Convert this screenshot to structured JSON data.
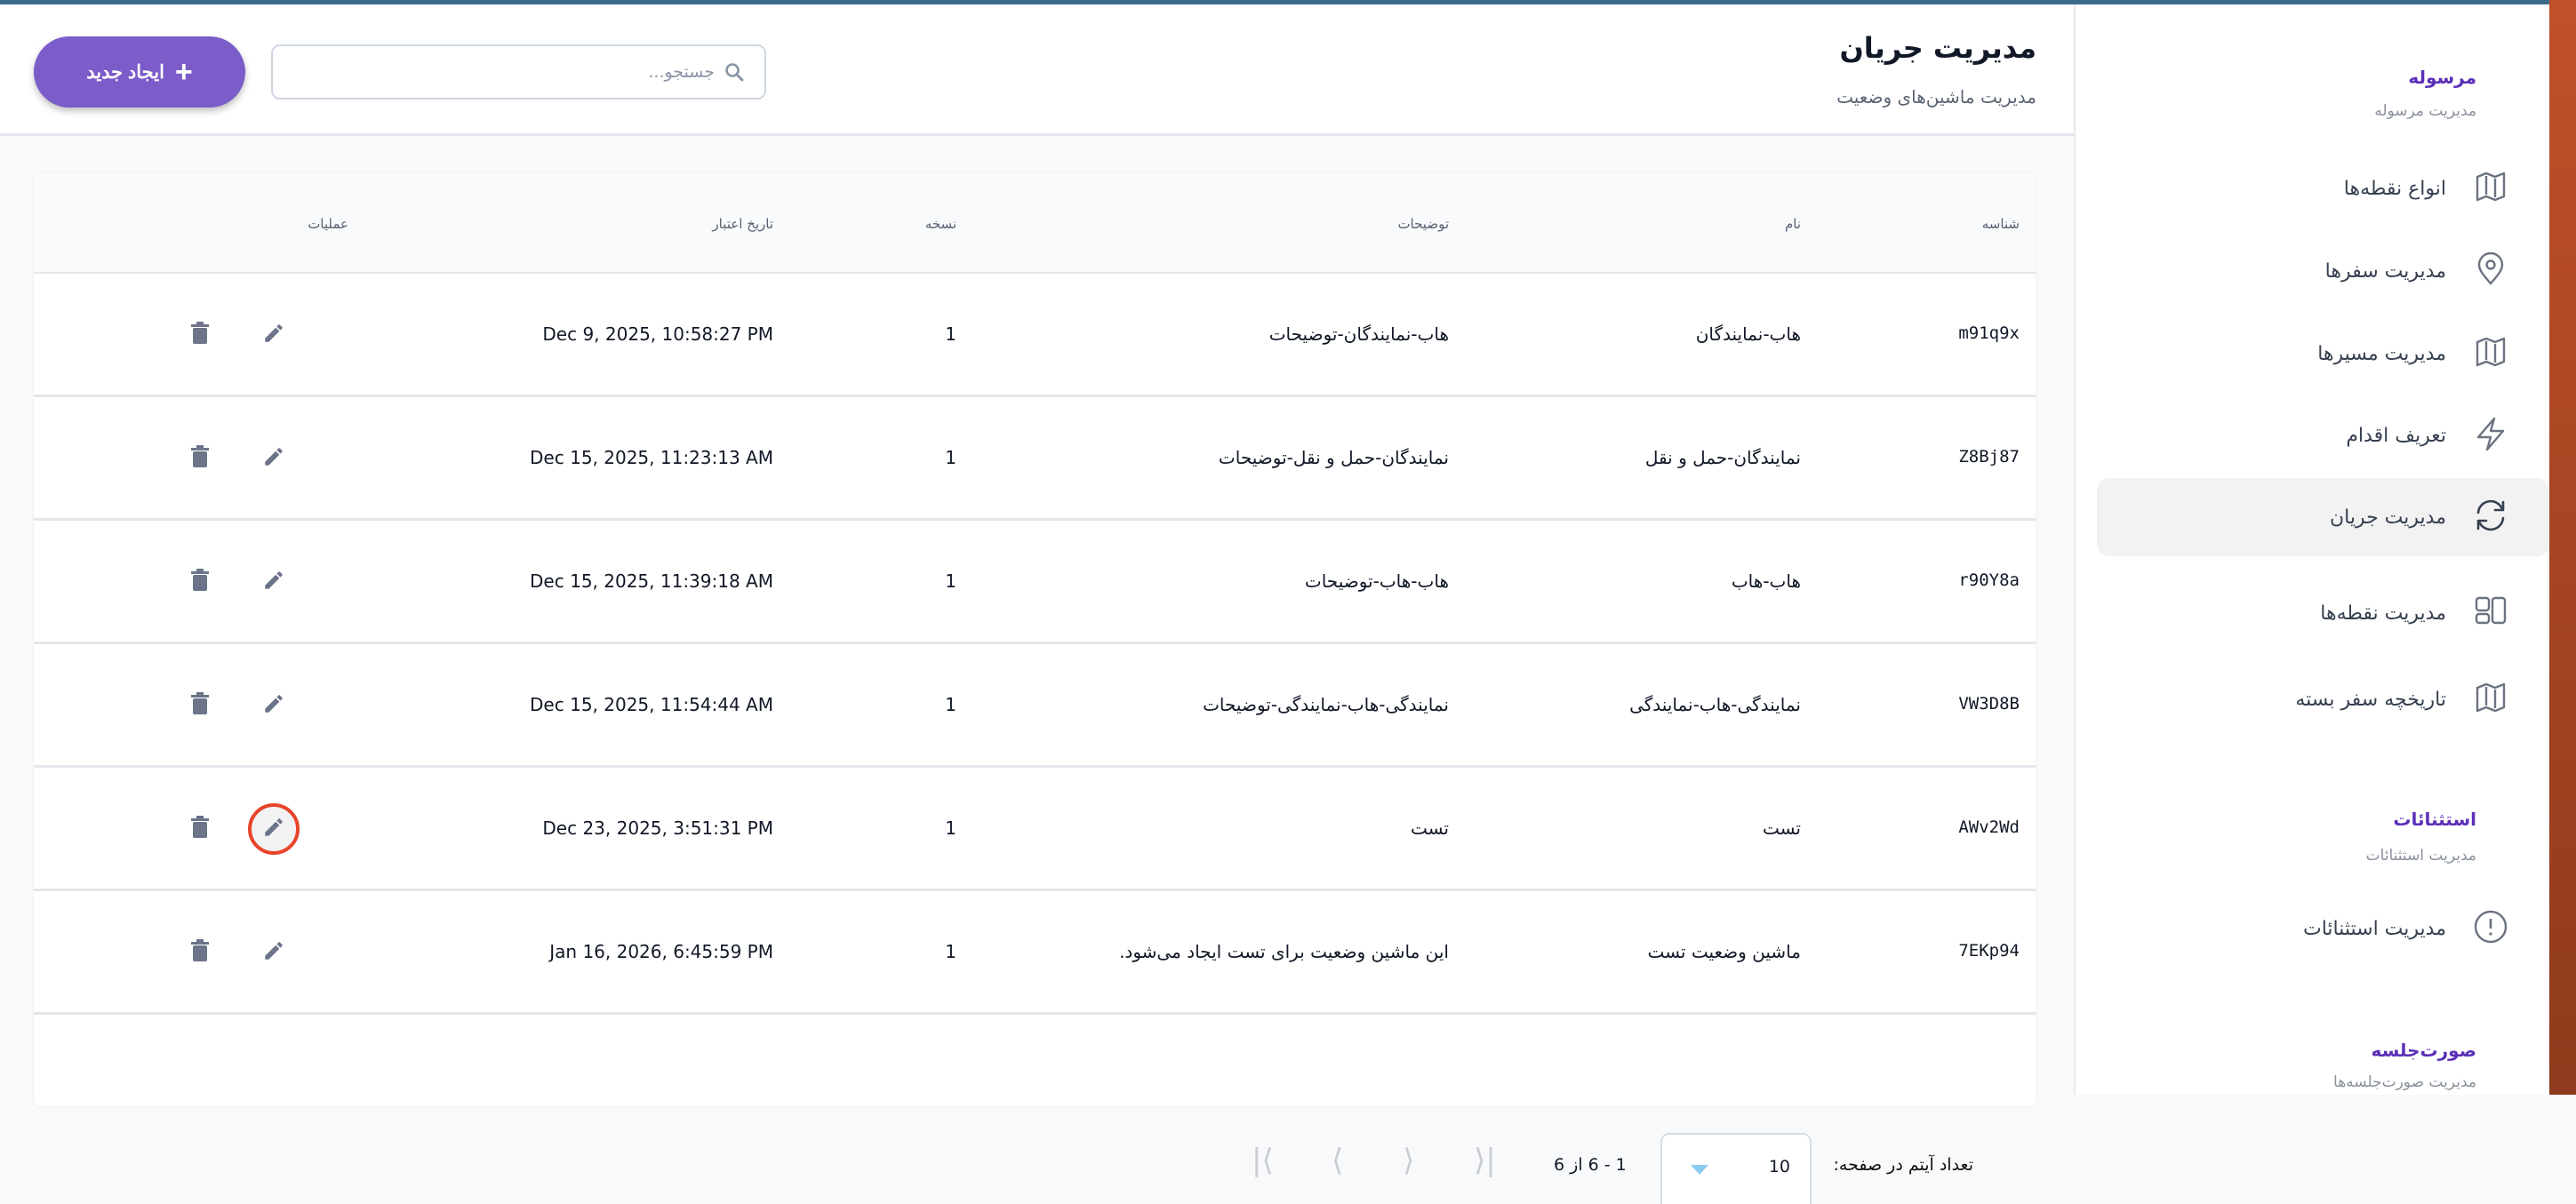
{
  "header": {
    "title": "مدیریت جریان",
    "subtitle": "مدیریت ماشین‌های وضعیت",
    "create_label": "ایجاد جدید",
    "search_placeholder": "جستجو...",
    "search_value": ""
  },
  "table": {
    "columns": [
      "شناسه",
      "نام",
      "توضیحات",
      "نسخه",
      "تاریخ اعتبار",
      "عملیات"
    ],
    "rows": [
      {
        "id": "m91q9x",
        "name": "هاب-نمایندگان",
        "description": "هاب-نمایندگان-توضیحات",
        "version": "1",
        "date": "Dec 9, 2025, 10:58:27 PM"
      },
      {
        "id": "Z8Bj87",
        "name": "نمایندگان-حمل و نقل",
        "description": "نمایندگان-حمل و نقل-توضیحات",
        "version": "1",
        "date": "Dec 15, 2025, 11:23:13 AM"
      },
      {
        "id": "r90Y8a",
        "name": "هاب-هاب",
        "description": "هاب-هاب-توضیحات",
        "version": "1",
        "date": "Dec 15, 2025, 11:39:18 AM"
      },
      {
        "id": "VW3D8B",
        "name": "نمایندگی-هاب-نمایندگی",
        "description": "نمایندگی-هاب-نمایندگی-توضیحات",
        "version": "1",
        "date": "Dec 15, 2025, 11:54:44 AM"
      },
      {
        "id": "AWv2Wd",
        "name": "تست",
        "description": "تست",
        "version": "1",
        "date": "Dec 23, 2025, 3:51:31 PM"
      },
      {
        "id": "7EKp94",
        "name": "ماشین وضعیت تست",
        "description": "این ماشین وضعیت برای تست ایجاد می‌شود.",
        "version": "1",
        "date": "Jan 16, 2026, 6:45:59 PM"
      }
    ],
    "highlighted_row": 4
  },
  "pagination": {
    "per_page_label": "تعداد آیتم در صفحه:",
    "per_page": "10",
    "range": "1 - 6 از 6"
  },
  "sidebar": {
    "groups": [
      {
        "title": "مرسوله",
        "subtitle": "مدیریت مرسوله",
        "items": [
          {
            "label": "انواع نقطه‌ها",
            "icon": "map-icon"
          },
          {
            "label": "مدیریت سفرها",
            "icon": "map-pin-icon"
          },
          {
            "label": "مدیریت مسیرها",
            "icon": "map-icon"
          },
          {
            "label": "تعریف اقدام",
            "icon": "lightning-icon"
          },
          {
            "label": "مدیریت جریان",
            "icon": "refresh-icon",
            "active": true
          },
          {
            "label": "مدیریت نقطه‌ها",
            "icon": "layout-icon"
          },
          {
            "label": "تاریخچه سفر بسته",
            "icon": "map-icon"
          }
        ]
      },
      {
        "title": "استثنائات",
        "subtitle": "مدیریت استثنائات",
        "items": [
          {
            "label": "مدیریت استثنائات",
            "icon": "alert-circle-icon"
          }
        ]
      },
      {
        "title": "صورت‌جلسه",
        "subtitle": "مدیریت صورت‌جلسه‌ها",
        "items": []
      }
    ]
  },
  "colors": {
    "accent": "#7b5cc8",
    "group_title": "#5b2fb8",
    "highlight_ring": "#e8442a",
    "topbar": "#3d6b8c"
  }
}
